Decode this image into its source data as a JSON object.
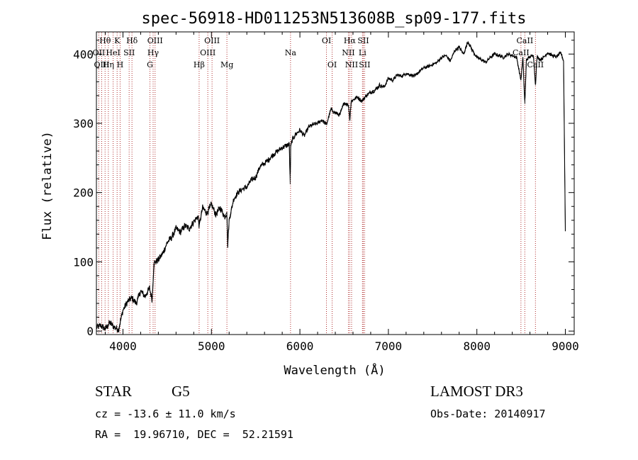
{
  "chart_data": {
    "type": "line",
    "title": "spec-56918-HD011253N513608B_sp09-177.fits",
    "xlabel": "Wavelength (Å)",
    "ylabel": "Flux (relative)",
    "xlim": [
      3700,
      9100
    ],
    "ylim": [
      -5,
      432
    ],
    "x_ticks": [
      4000,
      5000,
      6000,
      7000,
      8000,
      9000
    ],
    "y_ticks": [
      0,
      100,
      200,
      300,
      400
    ],
    "series": [
      {
        "name": "flux",
        "x": [
          3700,
          3750,
          3800,
          3850,
          3900,
          3950,
          4000,
          4050,
          4100,
          4150,
          4200,
          4250,
          4300,
          4330,
          4350,
          4400,
          4450,
          4500,
          4550,
          4600,
          4650,
          4700,
          4750,
          4800,
          4850,
          4861,
          4900,
          4950,
          5000,
          5050,
          5100,
          5150,
          5175,
          5183,
          5200,
          5250,
          5300,
          5350,
          5400,
          5450,
          5500,
          5550,
          5600,
          5650,
          5700,
          5750,
          5800,
          5850,
          5880,
          5890,
          5896,
          5910,
          5950,
          6000,
          6050,
          6100,
          6150,
          6200,
          6250,
          6300,
          6350,
          6400,
          6450,
          6500,
          6550,
          6563,
          6580,
          6650,
          6700,
          6750,
          6800,
          6850,
          6900,
          6950,
          7000,
          7050,
          7100,
          7150,
          7200,
          7250,
          7300,
          7350,
          7400,
          7450,
          7500,
          7550,
          7600,
          7650,
          7700,
          7750,
          7800,
          7850,
          7900,
          7950,
          8000,
          8050,
          8100,
          8150,
          8200,
          8250,
          8300,
          8350,
          8400,
          8450,
          8498,
          8520,
          8542,
          8560,
          8600,
          8640,
          8662,
          8680,
          8720,
          8760,
          8800,
          8850,
          8900,
          8950,
          8980,
          9000
        ],
        "y": [
          5,
          8,
          3,
          12,
          6,
          2,
          30,
          42,
          48,
          40,
          58,
          50,
          62,
          45,
          98,
          103,
          112,
          128,
          135,
          148,
          143,
          152,
          148,
          158,
          166,
          152,
          178,
          170,
          183,
          168,
          178,
          165,
          172,
          122,
          160,
          190,
          200,
          205,
          208,
          218,
          222,
          238,
          242,
          248,
          255,
          260,
          265,
          268,
          270,
          212,
          266,
          275,
          284,
          290,
          282,
          295,
          298,
          300,
          305,
          298,
          320,
          315,
          312,
          330,
          326,
          305,
          332,
          338,
          332,
          340,
          345,
          348,
          355,
          352,
          365,
          362,
          370,
          368,
          372,
          370,
          368,
          375,
          380,
          382,
          385,
          388,
          395,
          398,
          390,
          405,
          410,
          400,
          418,
          405,
          395,
          392,
          388,
          395,
          400,
          398,
          395,
          400,
          398,
          395,
          362,
          395,
          328,
          392,
          396,
          398,
          355,
          396,
          392,
          396,
          402,
          398,
          396,
          402,
          390,
          145
        ]
      }
    ],
    "line_labels": [
      {
        "text": "Hθ",
        "x": 3798,
        "row": 0
      },
      {
        "text": "OII",
        "x": 3727,
        "row": 1
      },
      {
        "text": "OIII",
        "x": 3760,
        "row": 2
      },
      {
        "text": "K",
        "x": 3934,
        "row": 0
      },
      {
        "text": "HeI",
        "x": 3889,
        "row": 1
      },
      {
        "text": "Hη",
        "x": 3835,
        "row": 2
      },
      {
        "text": "Hδ",
        "x": 4102,
        "row": 0
      },
      {
        "text": "SII",
        "x": 4070,
        "row": 1
      },
      {
        "text": "H",
        "x": 3968,
        "row": 2
      },
      {
        "text": "OIII",
        "x": 4363,
        "row": 0
      },
      {
        "text": "Hγ",
        "x": 4341,
        "row": 1
      },
      {
        "text": "G",
        "x": 4305,
        "row": 2
      },
      {
        "text": "OIII",
        "x": 5007,
        "row": 0
      },
      {
        "text": "OIII",
        "x": 4959,
        "row": 1
      },
      {
        "text": "Hβ",
        "x": 4861,
        "row": 2
      },
      {
        "text": "Mg",
        "x": 5175,
        "row": 2
      },
      {
        "text": "Na",
        "x": 5894,
        "row": 1
      },
      {
        "text": "OI",
        "x": 6300,
        "row": 0
      },
      {
        "text": "OI",
        "x": 6364,
        "row": 2
      },
      {
        "text": "Hα",
        "x": 6563,
        "row": 0
      },
      {
        "text": "SII",
        "x": 6716,
        "row": 0
      },
      {
        "text": "NII",
        "x": 6548,
        "row": 1
      },
      {
        "text": "Li",
        "x": 6707,
        "row": 1
      },
      {
        "text": "NII",
        "x": 6584,
        "row": 2
      },
      {
        "text": "SII",
        "x": 6731,
        "row": 2
      },
      {
        "text": "CaII",
        "x": 8542,
        "row": 0
      },
      {
        "text": "CaII",
        "x": 8498,
        "row": 1
      },
      {
        "text": "CaII",
        "x": 8662,
        "row": 2
      }
    ],
    "line_positions": [
      3727,
      3760,
      3798,
      3835,
      3889,
      3934,
      3968,
      4070,
      4102,
      4305,
      4341,
      4363,
      4861,
      4959,
      5007,
      5175,
      5894,
      6300,
      6364,
      6548,
      6563,
      6584,
      6707,
      6716,
      6731,
      8498,
      8542,
      8662
    ],
    "line_color": "#b03030",
    "axis_color": "#000000"
  },
  "info": {
    "obj_class": "STAR",
    "subclass": "G5",
    "survey": "LAMOST DR3",
    "cz": "cz = -13.6 ± 11.0 km/s",
    "obs_date": "Obs-Date: 20140917",
    "radec": "RA =  19.96710, DEC =  52.21591"
  }
}
